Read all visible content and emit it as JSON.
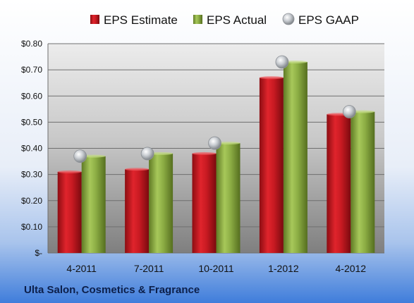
{
  "company": "Ulta Salon, Cosmetics & Fragrance",
  "colors": {
    "estimate": "#c0171f",
    "actual": "#86a83a",
    "gaap": "#b4b8bd",
    "background_top": "#ffffff",
    "background_bottom": "#3f7ddb"
  },
  "chart_data": {
    "type": "bar",
    "categories": [
      "4-2011",
      "7-2011",
      "10-2011",
      "1-2012",
      "4-2012"
    ],
    "series": [
      {
        "name": "EPS Estimate",
        "kind": "bar",
        "values": [
          0.31,
          0.32,
          0.38,
          0.67,
          0.53
        ]
      },
      {
        "name": "EPS Actual",
        "kind": "bar",
        "values": [
          0.37,
          0.38,
          0.42,
          0.73,
          0.54
        ]
      },
      {
        "name": "EPS GAAP",
        "kind": "marker",
        "values": [
          0.37,
          0.38,
          0.42,
          0.73,
          0.54
        ]
      }
    ],
    "ylim": [
      0,
      0.8
    ],
    "yticks": [
      0,
      0.1,
      0.2,
      0.3,
      0.4,
      0.5,
      0.6,
      0.7,
      0.8
    ],
    "ytick_labels": [
      "$-",
      "$0.10",
      "$0.20",
      "$0.30",
      "$0.40",
      "$0.50",
      "$0.60",
      "$0.70",
      "$0.80"
    ],
    "legend_position": "top",
    "grid": true
  }
}
